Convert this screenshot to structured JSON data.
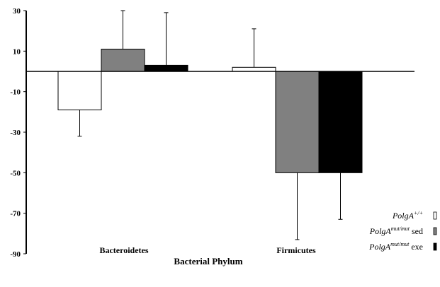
{
  "chart_data": {
    "type": "bar",
    "title": "",
    "xlabel": "Bacterial Phylum",
    "ylabel": "",
    "ylim": [
      -90,
      30
    ],
    "yticks": [
      30,
      10,
      -10,
      -30,
      -50,
      -70,
      -90
    ],
    "categories": [
      "Bacteroidetes",
      "Firmicutes"
    ],
    "series": [
      {
        "name_base": "PolgA",
        "name_sup": "+/+",
        "name_suffix": "",
        "color": "#ffffff",
        "values": [
          -19,
          2
        ],
        "errors": [
          13,
          19
        ]
      },
      {
        "name_base": "PolgA",
        "name_sup": "mut/mut",
        "name_suffix": "sed",
        "color": "#808080",
        "values": [
          11,
          -50
        ],
        "errors": [
          19,
          33
        ]
      },
      {
        "name_base": "PolgA",
        "name_sup": "mut/mut",
        "name_suffix": "exe",
        "color": "#000000",
        "values": [
          3,
          -50
        ],
        "errors": [
          26,
          23
        ]
      }
    ],
    "legend_position": "bottom-right",
    "grid": false
  }
}
